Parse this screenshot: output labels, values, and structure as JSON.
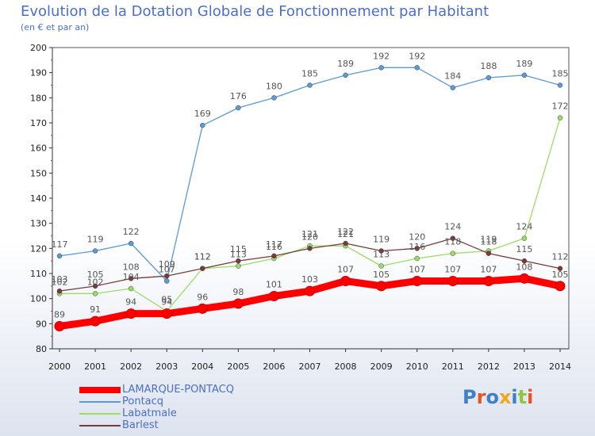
{
  "header": {
    "title": "Evolution de la Dotation Globale de Fonctionnement par Habitant",
    "subtitle": "(en € et par an)"
  },
  "logo": {
    "text": "Proxiti",
    "colors": [
      "#3a7fd0",
      "#e8541f",
      "#3a7fd0",
      "#f2a81d",
      "#3a7fd0",
      "#8dc63f",
      "#e8541f"
    ]
  },
  "chart_data": {
    "type": "line",
    "x": [
      "2000",
      "2001",
      "2002",
      "2003",
      "2004",
      "2005",
      "2006",
      "2007",
      "2008",
      "2009",
      "2010",
      "2011",
      "2012",
      "2013",
      "2014"
    ],
    "ylim": [
      80,
      200
    ],
    "yticks": [
      80,
      90,
      100,
      110,
      120,
      130,
      140,
      150,
      160,
      170,
      180,
      190,
      200
    ],
    "grid": false,
    "legend": "bottom-left",
    "series": [
      {
        "name": "LAMARQUE-PONTACQ",
        "color": "#ff0000",
        "values": [
          89,
          91,
          94,
          94,
          96,
          98,
          101,
          103,
          107,
          105,
          107,
          107,
          107,
          108,
          105
        ]
      },
      {
        "name": "Pontacq",
        "color": "#5a9ad6",
        "values": [
          117,
          119,
          122,
          107,
          169,
          176,
          180,
          185,
          189,
          192,
          192,
          184,
          188,
          189,
          185
        ]
      },
      {
        "name": "Labatmale",
        "color": "#99dd66",
        "values": [
          102,
          102,
          104,
          95,
          112,
          113,
          116,
          121,
          121,
          113,
          116,
          118,
          119,
          124,
          172
        ]
      },
      {
        "name": "Barlest",
        "color": "#7a3a3a",
        "values": [
          103,
          105,
          108,
          109,
          112,
          115,
          117,
          120,
          122,
          119,
          120,
          124,
          118,
          115,
          112
        ]
      }
    ]
  }
}
